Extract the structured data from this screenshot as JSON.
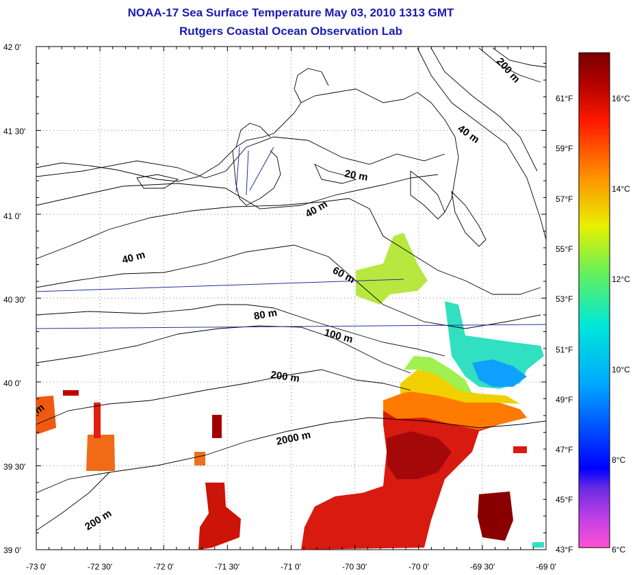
{
  "header": {
    "title": "NOAA-17 Sea Surface Temperature May 03, 2010 1313 GMT",
    "subtitle": "Rutgers Coastal Ocean Observation Lab"
  },
  "map": {
    "lon_range": [
      -73.0,
      -69.0
    ],
    "lat_range": [
      39.0,
      42.0
    ],
    "grid": true,
    "lat_labels": [
      "42 0'",
      "41 30'",
      "41 0'",
      "40 30'",
      "40 0'",
      "39 30'",
      "39 0'"
    ],
    "lon_labels": [
      "-73 0'",
      "-72 30'",
      "-72 0'",
      "-71 30'",
      "-71 0'",
      "-70 30'",
      "-70 0'",
      "-69 30'",
      "-69 0'"
    ],
    "contour_labels": [
      "20 m",
      "40 m",
      "40 m",
      "40 m",
      "60 m",
      "80 m",
      "100 m",
      "200 m",
      "2000 m",
      "200 m",
      "200 m",
      "m"
    ],
    "colors": {
      "grid": "#808080",
      "coastline": "#000000",
      "transect": "#1f2f9f"
    }
  },
  "colorbar": {
    "f_labels": [
      "61°F",
      "59°F",
      "57°F",
      "55°F",
      "53°F",
      "51°F",
      "49°F",
      "47°F",
      "45°F",
      "43°F"
    ],
    "c_labels": [
      "16°C",
      "14°C",
      "12°C",
      "10°C",
      "8°C",
      "6°C"
    ],
    "range_c": [
      6,
      17
    ],
    "colors": [
      "#ff50d0",
      "#8a2be2",
      "#0000ff",
      "#00b0ff",
      "#00e0d0",
      "#60f060",
      "#e8f000",
      "#ff9000",
      "#ff2000",
      "#d00000",
      "#800000"
    ]
  }
}
